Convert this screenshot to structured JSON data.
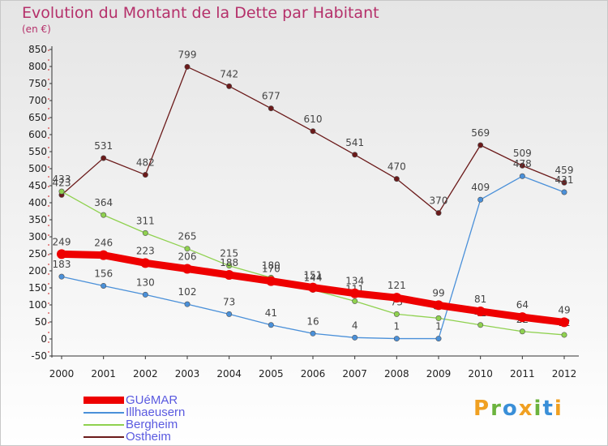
{
  "title": "Evolution du Montant de la Dette par Habitant",
  "unit": "(en €)",
  "logo": "Proxiti",
  "chart_data": {
    "type": "line",
    "x": [
      "2000",
      "2001",
      "2002",
      "2003",
      "2004",
      "2005",
      "2006",
      "2007",
      "2008",
      "2009",
      "2010",
      "2011",
      "2012"
    ],
    "ylim": [
      -50,
      850
    ],
    "yticks": [
      -50,
      0,
      50,
      100,
      150,
      200,
      250,
      300,
      350,
      400,
      450,
      500,
      550,
      600,
      650,
      700,
      750,
      800,
      850
    ],
    "grid": false,
    "legend_position": "bottom-left",
    "series": [
      {
        "name": "Ostheim",
        "color": "#6b1a1a",
        "values": [
          423,
          531,
          482,
          799,
          742,
          677,
          610,
          541,
          470,
          370,
          569,
          509,
          459
        ]
      },
      {
        "name": "Bergheim",
        "color": "#8fd14f",
        "values": [
          433,
          364,
          311,
          265,
          215,
          180,
          144,
          111,
          73,
          61,
          41,
          22,
          12
        ]
      },
      {
        "name": "Illhaeusern",
        "color": "#4a90d9",
        "values": [
          183,
          156,
          130,
          102,
          73,
          41,
          16,
          4,
          1,
          1,
          409,
          478,
          431
        ]
      },
      {
        "name": "GUéMAR",
        "color": "#ee0000",
        "values": [
          249,
          246,
          223,
          206,
          188,
          170,
          151,
          134,
          121,
          99,
          81,
          64,
          49
        ]
      }
    ]
  }
}
